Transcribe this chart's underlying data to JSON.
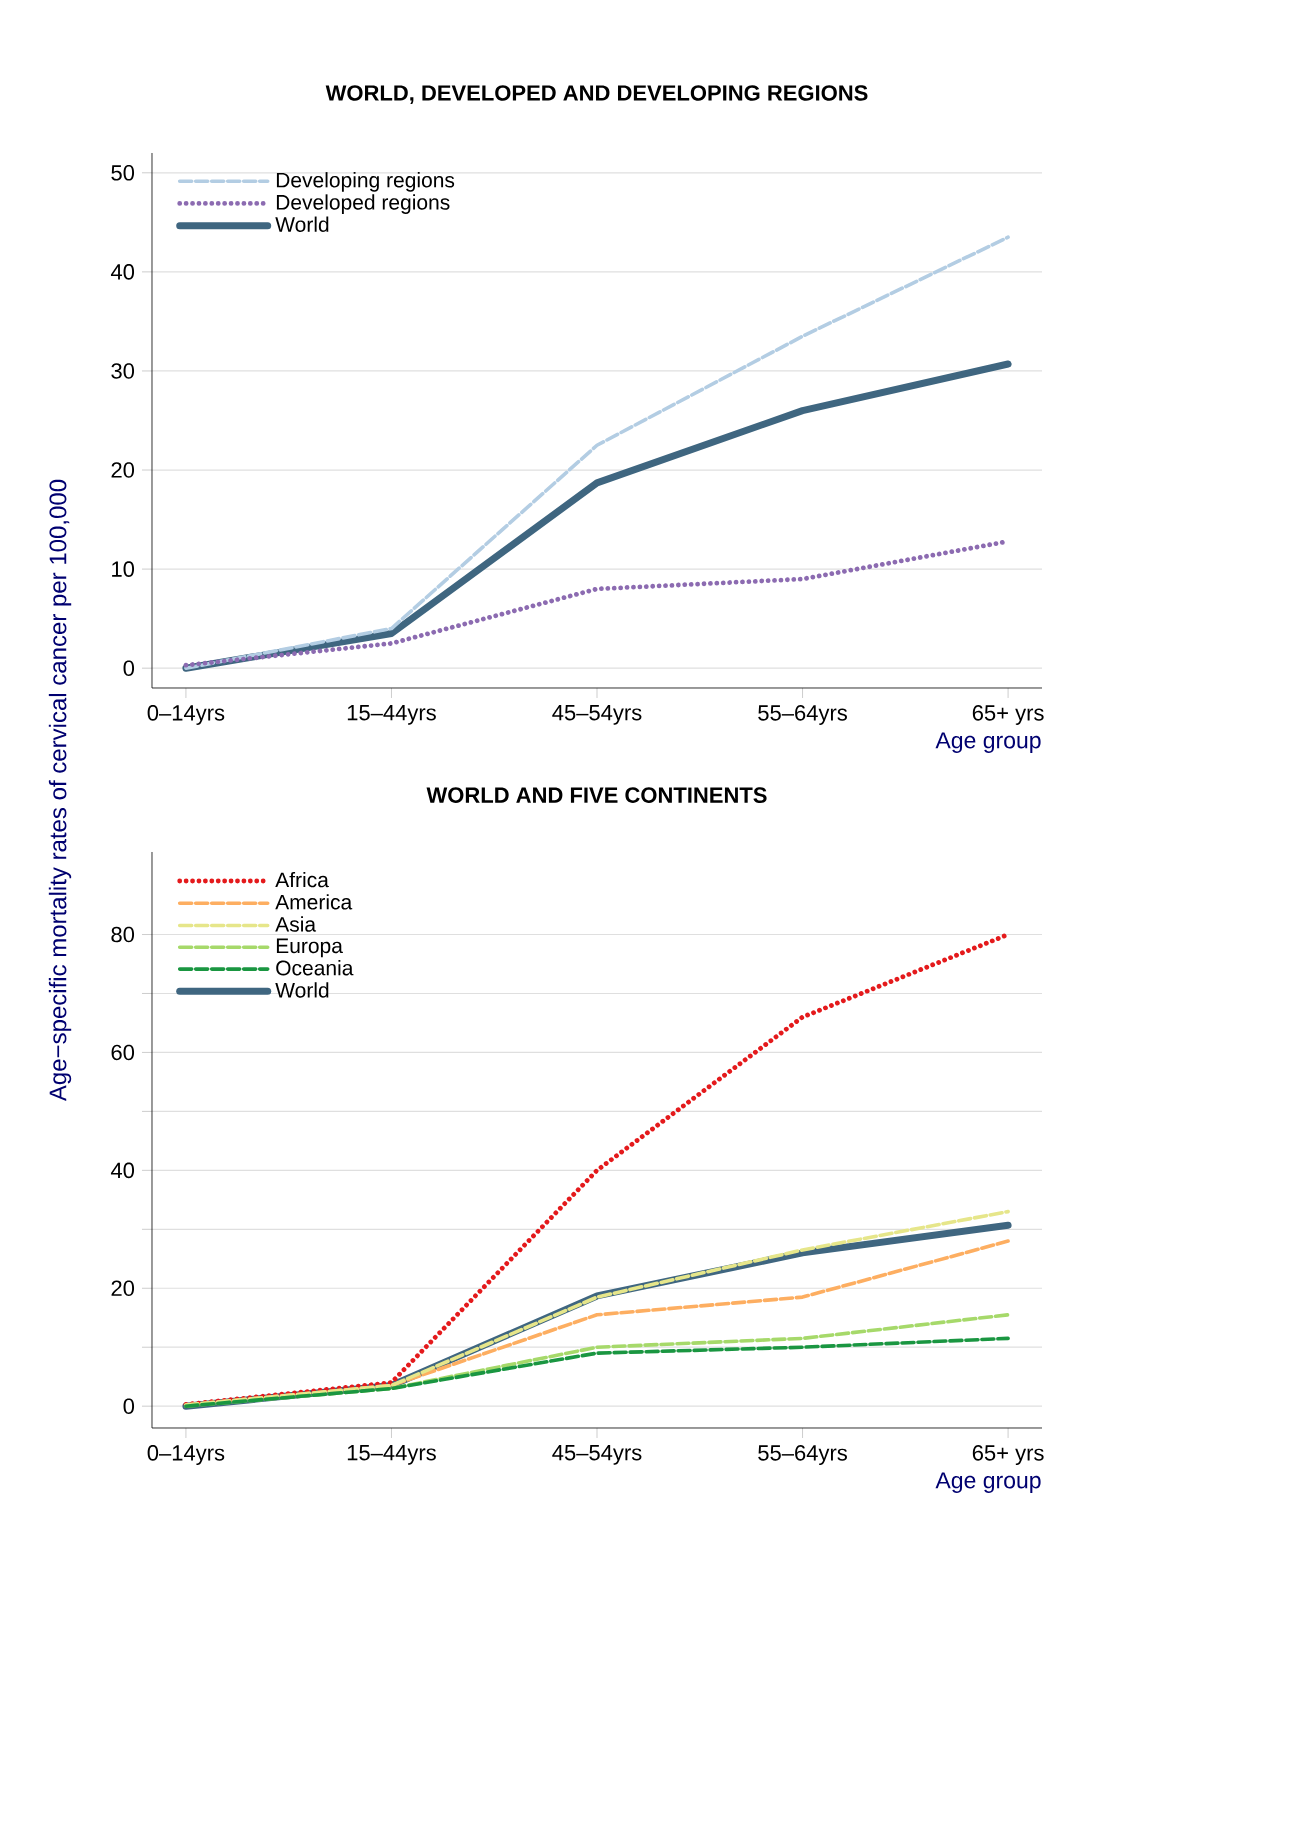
{
  "chart_data": [
    {
      "type": "line",
      "title": "WORLD, DEVELOPED AND DEVELOPING REGIONS",
      "xlabel": "Age group",
      "ylabel": "Age−specific mortality rates of cervical cancer per 100,000",
      "categories": [
        "0–14yrs",
        "15–44yrs",
        "45–54yrs",
        "55–64yrs",
        "65+ yrs"
      ],
      "series": [
        {
          "name": "Developing regions",
          "color": "#b3cde3",
          "line_style": "dashed",
          "values": [
            0,
            4,
            22.5,
            33.5,
            43.5
          ]
        },
        {
          "name": "Developed regions",
          "color": "#8c6bb1",
          "line_style": "dotted",
          "values": [
            0.3,
            2.5,
            8,
            9,
            12.8
          ]
        },
        {
          "name": "World",
          "color": "#3f6680",
          "line_style": "solid",
          "values": [
            0,
            3.5,
            18.7,
            26,
            30.7
          ]
        }
      ],
      "ylim": [
        -2,
        52
      ],
      "yticks": [
        0,
        10,
        20,
        30,
        40,
        50
      ],
      "grid": "y",
      "legend": "top left"
    },
    {
      "type": "line",
      "title": "WORLD AND FIVE CONTINENTS",
      "xlabel": "Age group",
      "categories": [
        "0–14yrs",
        "15–44yrs",
        "45–54yrs",
        "55–64yrs",
        "65+ yrs"
      ],
      "series": [
        {
          "name": "Africa",
          "color": "#e41a1c",
          "line_style": "dotted",
          "values": [
            0.3,
            4,
            40,
            66,
            80
          ]
        },
        {
          "name": "America",
          "color": "#fdae61",
          "line_style": "dashed",
          "values": [
            0.2,
            3.5,
            15.5,
            18.5,
            28
          ]
        },
        {
          "name": "Asia",
          "color": "#e6e68a",
          "line_style": "dashed",
          "values": [
            0.2,
            3.5,
            18.5,
            26.5,
            33
          ]
        },
        {
          "name": "Europa",
          "color": "#a6d96a",
          "line_style": "dashed",
          "values": [
            0,
            3,
            10,
            11.5,
            15.5
          ]
        },
        {
          "name": "Oceania",
          "color": "#1a9641",
          "line_style": "dashed",
          "values": [
            0,
            3,
            9,
            10,
            11.5
          ]
        },
        {
          "name": "World",
          "color": "#3f6680",
          "line_style": "solid",
          "values": [
            0,
            3.5,
            18.7,
            26,
            30.7
          ]
        }
      ],
      "ylim": [
        -3.7,
        94
      ],
      "yticks": [
        0,
        {
          "value": 10,
          "label": null
        },
        20,
        {
          "value": 30,
          "label": null
        },
        40,
        {
          "value": 50,
          "label": null
        },
        60,
        {
          "value": 70,
          "label": null
        },
        80
      ],
      "grid": "y",
      "legend": "top left"
    }
  ]
}
